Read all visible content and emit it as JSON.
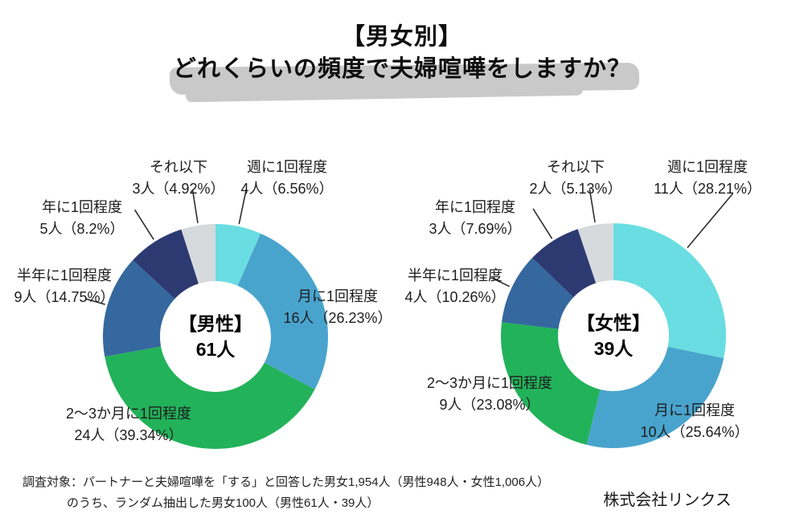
{
  "title": {
    "line1": "【男女別】",
    "line2": "どれくらいの頻度で夫婦喧嘩をしますか？"
  },
  "footnote": {
    "line1": "調査対象：パートナーと夫婦喧嘩を「する」と回答した男女1,954人（男性948人・女性1,006人）",
    "line2": "のうち、ランダム抽出した男女100人（男性61人・39人）"
  },
  "company": "株式会社リンクス",
  "palette": {
    "weekly": "#69DDE1",
    "monthly": "#49A4CD",
    "every_2_3_months": "#22B25A",
    "half_yearly": "#34689E",
    "yearly": "#2D3A72",
    "less_than_that": "#D7DADC",
    "leader_line": "#2e2e2e",
    "highlight_marker": "#c9c9c9"
  },
  "chart_data": [
    {
      "type": "pie",
      "subtype": "donut",
      "group": "男性",
      "center": {
        "title": "【男性】",
        "total": "61人"
      },
      "total_count": 61,
      "start": "top",
      "direction": "clockwise",
      "slices": [
        {
          "name": "週に1回程度",
          "count": 4,
          "percent": 6.56,
          "count_label": "4人（6.56%）",
          "color": "#69DDE1"
        },
        {
          "name": "月に1回程度",
          "count": 16,
          "percent": 26.23,
          "count_label": "16人（26.23%）",
          "color": "#49A4CD"
        },
        {
          "name": "2〜3か月に1回程度",
          "count": 24,
          "percent": 39.34,
          "count_label": "24人（39.34%）",
          "color": "#22B25A"
        },
        {
          "name": "半年に1回程度",
          "count": 9,
          "percent": 14.75,
          "count_label": "9人（14.75%）",
          "color": "#34689E"
        },
        {
          "name": "年に1回程度",
          "count": 5,
          "percent": 8.2,
          "count_label": "5人（8.2%）",
          "color": "#2D3A72"
        },
        {
          "name": "それ以下",
          "count": 3,
          "percent": 4.92,
          "count_label": "3人（4.92%）",
          "color": "#D7DADC"
        }
      ]
    },
    {
      "type": "pie",
      "subtype": "donut",
      "group": "女性",
      "center": {
        "title": "【女性】",
        "total": "39人"
      },
      "total_count": 39,
      "start": "top",
      "direction": "clockwise",
      "slices": [
        {
          "name": "週に1回程度",
          "count": 11,
          "percent": 28.21,
          "count_label": "11人（28.21%）",
          "color": "#69DDE1"
        },
        {
          "name": "月に1回程度",
          "count": 10,
          "percent": 25.64,
          "count_label": "10人（25.64%）",
          "color": "#49A4CD"
        },
        {
          "name": "2〜3か月に1回程度",
          "count": 9,
          "percent": 23.08,
          "count_label": "9人（23.08%）",
          "color": "#22B25A"
        },
        {
          "name": "半年に1回程度",
          "count": 4,
          "percent": 10.26,
          "count_label": "4人（10.26%）",
          "color": "#34689E"
        },
        {
          "name": "年に1回程度",
          "count": 3,
          "percent": 7.69,
          "count_label": "3人（7.69%）",
          "color": "#2D3A72"
        },
        {
          "name": "それ以下",
          "count": 2,
          "percent": 5.13,
          "count_label": "2人（5.13%）",
          "color": "#D7DADC"
        }
      ]
    }
  ]
}
